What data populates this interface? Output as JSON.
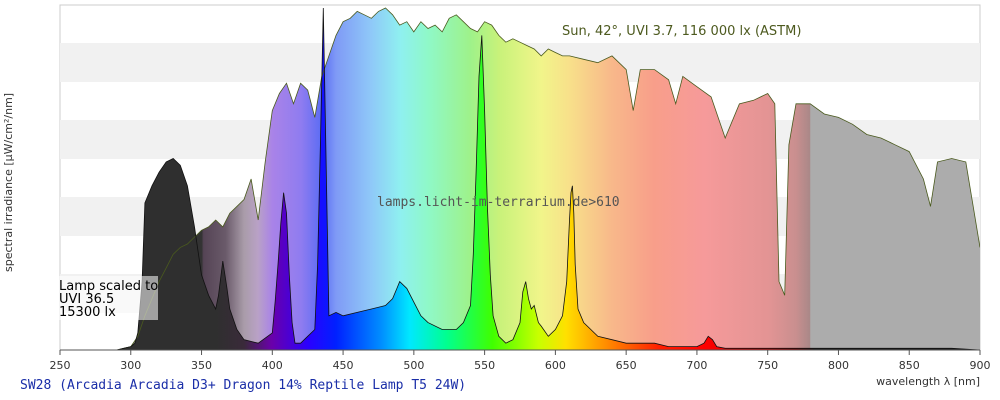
{
  "chart_data": {
    "type": "area",
    "footer_title": "SW28 (Arcadia Arcadia D3+ Dragon 14% Reptile Lamp T5 24W)",
    "xlabel": "wavelength λ [nm]",
    "ylabel": "spectral irradiance [µW/cm²/nm]",
    "xlim": [
      250,
      900
    ],
    "x_ticks": [
      "250",
      "300",
      "350",
      "400",
      "450",
      "500",
      "550",
      "600",
      "650",
      "700",
      "750",
      "800",
      "850",
      "900"
    ],
    "ylim": [
      0,
      1
    ],
    "y_grid_bands": true,
    "annotation_sun": "Sun, 42°, UVI 3.7, 116 000 lx (ASTM)",
    "watermark": "lamps.licht-im-terrarium.de>610",
    "lamp_label_lines": [
      "Lamp scaled to",
      "UVI 36.5",
      "15300 lx"
    ],
    "series": [
      {
        "name": "Sun, 42°, UVI 3.7, 116 000 lx (ASTM)",
        "x": [
          290,
          300,
          305,
          310,
          315,
          320,
          325,
          330,
          335,
          340,
          345,
          350,
          355,
          360,
          365,
          370,
          375,
          380,
          385,
          390,
          395,
          400,
          405,
          410,
          415,
          420,
          425,
          430,
          435,
          440,
          445,
          450,
          455,
          460,
          465,
          470,
          475,
          480,
          485,
          490,
          495,
          500,
          505,
          510,
          515,
          520,
          525,
          530,
          535,
          540,
          545,
          550,
          555,
          560,
          565,
          570,
          575,
          580,
          585,
          590,
          595,
          600,
          605,
          610,
          620,
          630,
          640,
          650,
          655,
          660,
          670,
          680,
          685,
          690,
          700,
          710,
          720,
          730,
          740,
          750,
          755,
          758,
          762,
          765,
          770,
          780,
          790,
          800,
          810,
          820,
          830,
          840,
          850,
          860,
          865,
          870,
          880,
          890,
          900
        ],
        "y": [
          0,
          0.01,
          0.04,
          0.1,
          0.15,
          0.2,
          0.24,
          0.28,
          0.3,
          0.31,
          0.33,
          0.35,
          0.36,
          0.38,
          0.36,
          0.4,
          0.42,
          0.44,
          0.5,
          0.38,
          0.55,
          0.7,
          0.75,
          0.78,
          0.72,
          0.78,
          0.76,
          0.68,
          0.8,
          0.86,
          0.92,
          0.96,
          0.97,
          0.99,
          0.98,
          0.97,
          0.99,
          1.0,
          0.98,
          0.95,
          0.96,
          0.93,
          0.96,
          0.94,
          0.95,
          0.93,
          0.97,
          0.98,
          0.96,
          0.94,
          0.93,
          0.96,
          0.95,
          0.92,
          0.9,
          0.91,
          0.9,
          0.89,
          0.88,
          0.86,
          0.88,
          0.87,
          0.86,
          0.86,
          0.85,
          0.84,
          0.86,
          0.82,
          0.7,
          0.82,
          0.82,
          0.79,
          0.72,
          0.8,
          0.77,
          0.74,
          0.62,
          0.72,
          0.73,
          0.75,
          0.72,
          0.2,
          0.16,
          0.6,
          0.72,
          0.72,
          0.69,
          0.68,
          0.66,
          0.63,
          0.62,
          0.6,
          0.58,
          0.5,
          0.42,
          0.55,
          0.56,
          0.55,
          0.3
        ]
      },
      {
        "name": "SW28 (Arcadia Arcadia D3+ Dragon 14% Reptile Lamp T5 24W)",
        "x": [
          250,
          290,
          295,
          300,
          303,
          305,
          308,
          310,
          315,
          320,
          325,
          330,
          335,
          340,
          345,
          350,
          355,
          360,
          362,
          365,
          368,
          370,
          375,
          380,
          390,
          400,
          402,
          404,
          406,
          408,
          410,
          412,
          414,
          416,
          420,
          425,
          430,
          432,
          434,
          436,
          438,
          440,
          445,
          450,
          460,
          470,
          480,
          485,
          488,
          490,
          495,
          500,
          505,
          510,
          520,
          530,
          535,
          540,
          542,
          544,
          546,
          548,
          550,
          552,
          554,
          556,
          560,
          565,
          570,
          575,
          577,
          579,
          581,
          583,
          585,
          588,
          590,
          595,
          600,
          605,
          608,
          610,
          611,
          612,
          613,
          614,
          616,
          620,
          625,
          630,
          640,
          650,
          660,
          670,
          680,
          690,
          700,
          705,
          708,
          711,
          714,
          720,
          740,
          760,
          780,
          800,
          820,
          840,
          860,
          880,
          900
        ],
        "y": [
          0,
          0,
          0.005,
          0.01,
          0.02,
          0.05,
          0.2,
          0.43,
          0.48,
          0.52,
          0.55,
          0.56,
          0.54,
          0.48,
          0.36,
          0.22,
          0.16,
          0.12,
          0.16,
          0.26,
          0.18,
          0.12,
          0.06,
          0.03,
          0.02,
          0.05,
          0.14,
          0.25,
          0.37,
          0.46,
          0.4,
          0.22,
          0.08,
          0.02,
          0.02,
          0.04,
          0.06,
          0.25,
          0.6,
          1.0,
          0.55,
          0.1,
          0.11,
          0.1,
          0.11,
          0.12,
          0.13,
          0.15,
          0.18,
          0.2,
          0.18,
          0.14,
          0.1,
          0.08,
          0.06,
          0.06,
          0.08,
          0.13,
          0.28,
          0.52,
          0.8,
          0.92,
          0.7,
          0.42,
          0.22,
          0.1,
          0.04,
          0.02,
          0.03,
          0.08,
          0.17,
          0.2,
          0.15,
          0.12,
          0.13,
          0.08,
          0.07,
          0.04,
          0.06,
          0.1,
          0.2,
          0.38,
          0.46,
          0.48,
          0.4,
          0.25,
          0.12,
          0.08,
          0.06,
          0.04,
          0.03,
          0.02,
          0.02,
          0.02,
          0.01,
          0.01,
          0.01,
          0.02,
          0.04,
          0.03,
          0.01,
          0.005,
          0.005,
          0.005,
          0.005,
          0.005,
          0.005,
          0.005,
          0.005,
          0.005,
          0
        ]
      }
    ]
  }
}
